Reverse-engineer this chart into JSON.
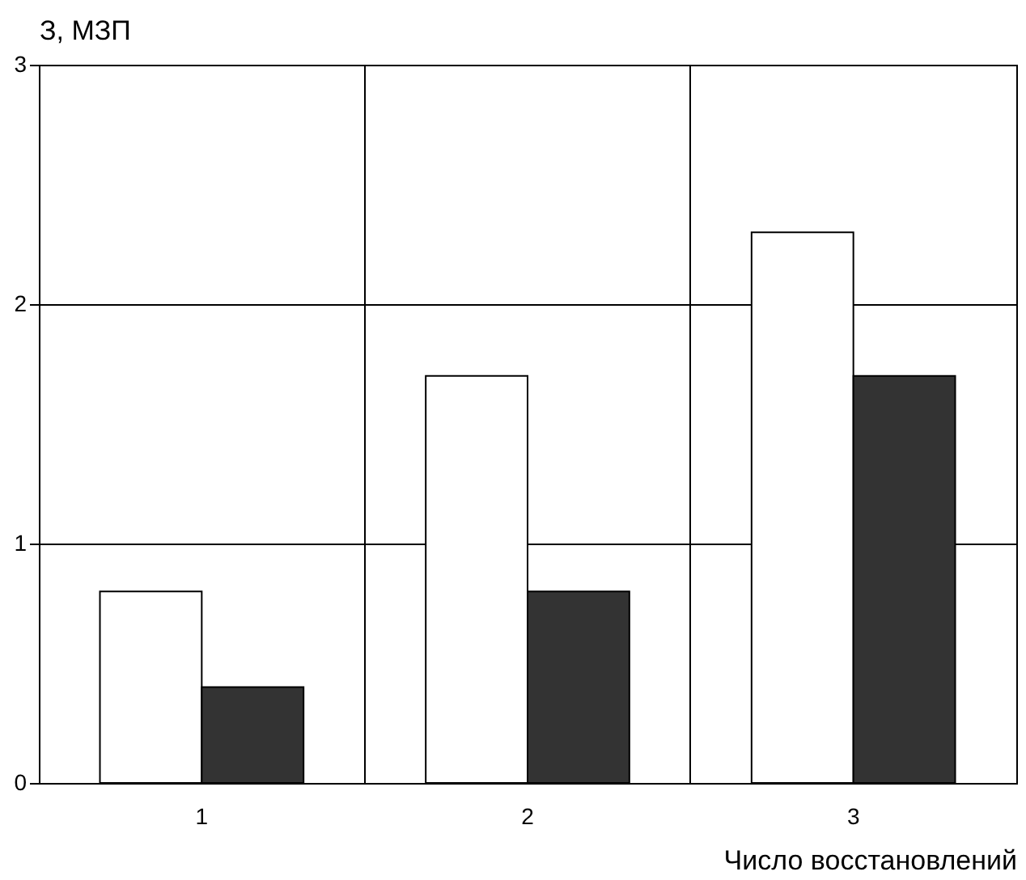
{
  "chart_data": {
    "type": "bar",
    "xlabel": "Число восстановлений",
    "ylabel": "З, МЗП",
    "categories": [
      "1",
      "2",
      "3"
    ],
    "series": [
      {
        "color": "#ffffff",
        "values": [
          0.8,
          1.7,
          2.3
        ]
      },
      {
        "color": "#333333",
        "values": [
          0.4,
          0.8,
          1.7
        ]
      }
    ],
    "ylim": [
      0,
      3
    ],
    "yticks": [
      0,
      1,
      2,
      3
    ],
    "grid": true
  }
}
